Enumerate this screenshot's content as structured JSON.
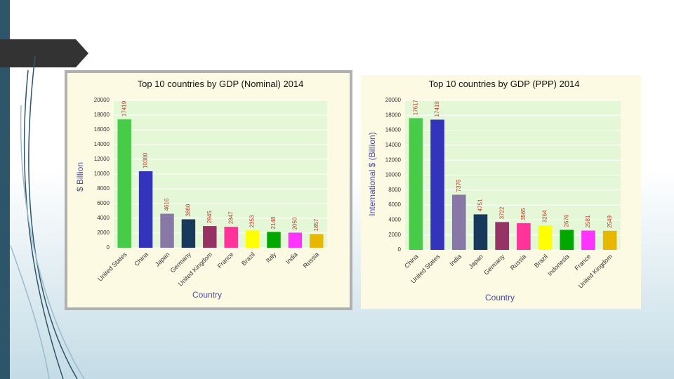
{
  "chart_data": [
    {
      "type": "bar",
      "title": "Top 10 countries by GDP (Nominal) 2014",
      "y_label": "$ Billion",
      "x_label": "Country",
      "categories": [
        "United States",
        "China",
        "Japan",
        "Germany",
        "United Kingdom",
        "France",
        "Brazil",
        "Italy",
        "India",
        "Russia"
      ],
      "values": [
        17419,
        10380,
        4616,
        3860,
        2945,
        2847,
        2353,
        2148,
        2050,
        1857
      ],
      "colors": [
        "#47cc47",
        "#3333bb",
        "#8878a6",
        "#173a5c",
        "#963264",
        "#ff3399",
        "#ffff00",
        "#00a800",
        "#ff33ff",
        "#e8b800"
      ],
      "ylim": [
        0,
        20000
      ],
      "yticks": [
        0,
        2000,
        4000,
        6000,
        8000,
        10000,
        12000,
        14000,
        16000,
        18000,
        20000
      ],
      "grid": true
    },
    {
      "type": "bar",
      "title": "Top 10 countries by GDP (PPP) 2014",
      "y_label": "International $ (Billion)",
      "x_label": "Country",
      "categories": [
        "China",
        "United States",
        "India",
        "Japan",
        "Germany",
        "Russia",
        "Brazil",
        "Indonesia",
        "France",
        "United Kingdom"
      ],
      "values": [
        17617,
        17419,
        7376,
        4751,
        3722,
        3565,
        3264,
        2676,
        2581,
        2549
      ],
      "colors": [
        "#47cc47",
        "#3333bb",
        "#8878a6",
        "#173a5c",
        "#963264",
        "#ff3399",
        "#ffff00",
        "#00a800",
        "#ff33ff",
        "#e8b800"
      ],
      "ylim": [
        0,
        20000
      ],
      "yticks": [
        0,
        2000,
        4000,
        6000,
        8000,
        10000,
        12000,
        14000,
        16000,
        18000,
        20000
      ],
      "grid": true
    }
  ]
}
